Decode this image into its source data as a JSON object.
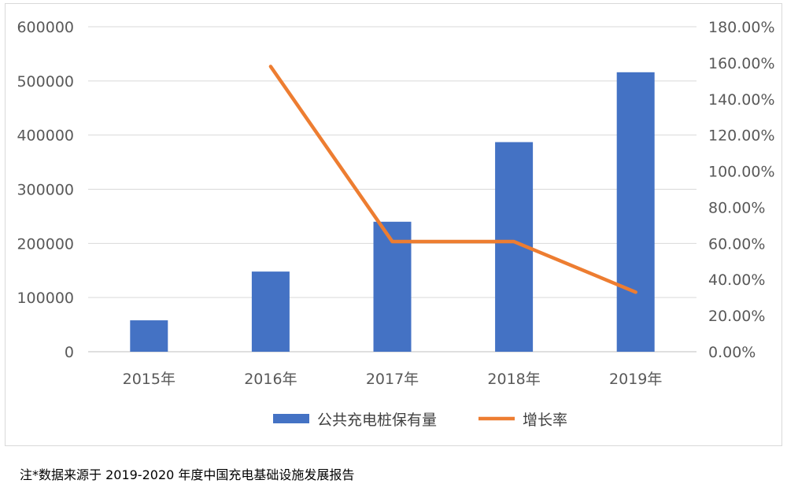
{
  "chart_data": {
    "type": "bar",
    "categories": [
      "2015年",
      "2016年",
      "2017年",
      "2018年",
      "2019年"
    ],
    "series": [
      {
        "name": "公共充电桩保有量",
        "type": "bar",
        "axis": "left",
        "color": "#4472C4",
        "values": [
          58000,
          148000,
          240000,
          387000,
          516000
        ]
      },
      {
        "name": "增长率",
        "type": "line",
        "axis": "right",
        "color": "#ED7D31",
        "values": [
          null,
          1.58,
          0.61,
          0.61,
          0.33
        ]
      }
    ],
    "left_axis": {
      "ylim": [
        0,
        600000
      ],
      "ticks": [
        "0",
        "100000",
        "200000",
        "300000",
        "400000",
        "500000",
        "600000"
      ]
    },
    "right_axis": {
      "ylim": [
        0,
        1.8
      ],
      "ticks": [
        "0.00%",
        "20.00%",
        "40.00%",
        "60.00%",
        "80.00%",
        "100.00%",
        "120.00%",
        "140.00%",
        "160.00%",
        "180.00%"
      ]
    },
    "grid": true,
    "legend_placement": "bottom"
  },
  "footnote": "注*数据来源于 2019-2020 年度中国充电基础设施发展报告"
}
